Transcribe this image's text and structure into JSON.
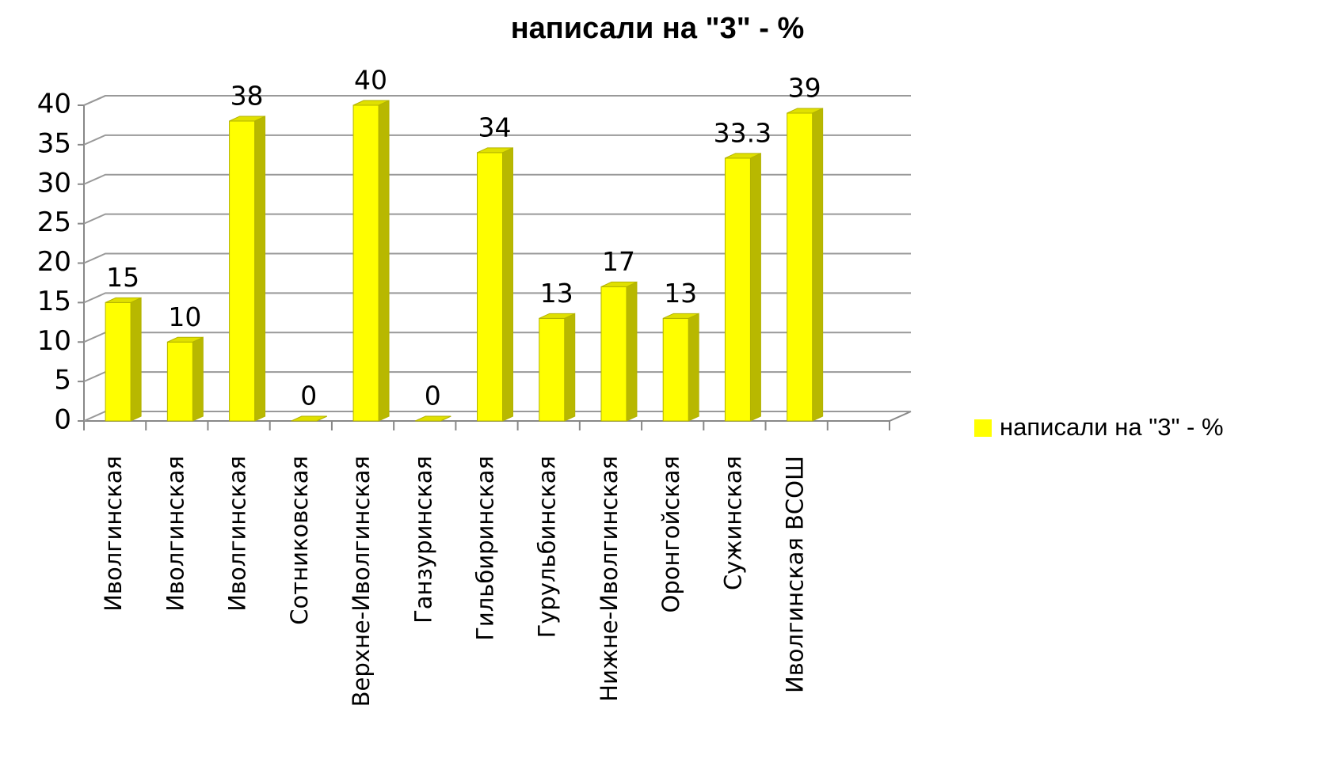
{
  "chart_data": {
    "type": "bar3d",
    "title": "написали на \"3\" - %",
    "categories": [
      "Иволгинская",
      "Иволгинская",
      "Иволгинская",
      "Сотниковская",
      "Верхне-Иволгинская",
      "Ганзуринская",
      "Гильбиринская",
      "Гурульбинская",
      "Нижне-Иволгинская",
      "Оронгойская",
      "Сужинская",
      "Иволгинская ВСОШ",
      null
    ],
    "series": [
      {
        "name": "написали на \"3\" - %",
        "color": "#ffff00",
        "values": [
          15,
          10,
          38,
          0,
          40,
          0,
          34,
          13,
          17,
          13,
          33.3,
          39,
          null
        ]
      }
    ],
    "ylim": [
      0,
      40
    ],
    "yticks": [
      0,
      5,
      10,
      15,
      20,
      25,
      30,
      35,
      40
    ],
    "grid": true,
    "legend": "right"
  }
}
